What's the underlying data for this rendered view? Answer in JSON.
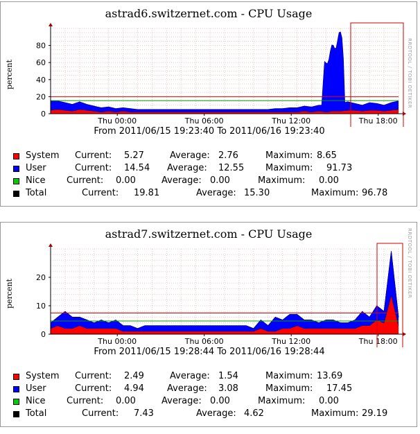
{
  "chart_data": [
    {
      "type": "area",
      "title": "astrad6.switzernet.com - CPU Usage",
      "ylabel": "percent",
      "watermark": "RRDTOOL / TOBI OETIKER",
      "x_range": [
        "2011/06/15 19:23:40",
        "2011/06/16 19:23:40"
      ],
      "x_ticks": [
        "Thu 00:00",
        "Thu 06:00",
        "Thu 12:00",
        "Thu 18:00"
      ],
      "y_ticks": [
        0,
        20,
        40,
        60,
        80
      ],
      "ylim": [
        0,
        100
      ],
      "hlines": [
        {
          "value": 19.81,
          "color": "#e00000"
        },
        {
          "value": 15.3,
          "color": "#00a000"
        }
      ],
      "range_text": "From 2011/06/15 19:23:40 To 2011/06/16 19:23:40",
      "x_hours": [
        0,
        0.5,
        1,
        1.5,
        2,
        2.5,
        3,
        3.5,
        4,
        4.5,
        5,
        5.5,
        6,
        6.5,
        7,
        7.5,
        8,
        8.5,
        9,
        9.5,
        10,
        10.5,
        11,
        11.5,
        12,
        12.5,
        13,
        13.5,
        14,
        14.5,
        15,
        15.5,
        16,
        16.5,
        17,
        17.5,
        18,
        18.5,
        19,
        19.5,
        20,
        20.5,
        21,
        21.5,
        22,
        22.5,
        23,
        23.5,
        24
      ],
      "series": [
        {
          "name": "System",
          "color": "#ff0000",
          "values": [
            4,
            5,
            4,
            3,
            5,
            4,
            3,
            2,
            3,
            2,
            3,
            2,
            2,
            2,
            2,
            2,
            2,
            2,
            2,
            2,
            2,
            2,
            2,
            2,
            2,
            2,
            2,
            2,
            2,
            2,
            2,
            2,
            2,
            2,
            2,
            3,
            2,
            3,
            2,
            3,
            3,
            4,
            4,
            3,
            4,
            4,
            3,
            4,
            5
          ]
        },
        {
          "name": "User",
          "color": "#0000ff",
          "values": [
            11,
            10,
            9,
            8,
            9,
            7,
            6,
            5,
            5,
            4,
            4,
            4,
            3,
            3,
            3,
            3,
            3,
            3,
            3,
            3,
            3,
            3,
            3,
            3,
            3,
            3,
            3,
            3,
            3,
            3,
            3,
            4,
            4,
            5,
            5,
            6,
            6,
            7,
            8,
            8,
            9,
            10,
            8,
            7,
            9,
            8,
            7,
            9,
            10
          ],
          "spike": {
            "from_hour": 18.7,
            "to_hour": 20.3,
            "peak": 96.78
          }
        }
      ],
      "legend": [
        {
          "name": "System",
          "color": "#ff0000",
          "current": "5.27",
          "average": "2.76",
          "maximum": "8.65"
        },
        {
          "name": "User",
          "color": "#0000ff",
          "current": "14.54",
          "average": "12.55",
          "maximum": "91.73"
        },
        {
          "name": "Nice",
          "color": "#00cc00",
          "current": "0.00",
          "average": "0.00",
          "maximum": "0.00"
        },
        {
          "name": "Total",
          "color": "#000000",
          "current": "19.81",
          "average": "15.30",
          "maximum": "96.78"
        }
      ],
      "labels": {
        "current": "Current:",
        "average": "Average:",
        "maximum": "Maximum:"
      }
    },
    {
      "type": "area",
      "title": "astrad7.switzernet.com - CPU Usage",
      "ylabel": "percent",
      "watermark": "RRDTOOL / TOBI OETIKER",
      "x_range": [
        "2011/06/15 19:28:44",
        "2011/06/16 19:28:44"
      ],
      "x_ticks": [
        "Thu 00:00",
        "Thu 06:00",
        "Thu 12:00",
        "Thu 18:00"
      ],
      "y_ticks": [
        0,
        10,
        20
      ],
      "ylim": [
        0,
        30
      ],
      "hlines": [
        {
          "value": 7.43,
          "color": "#e00000"
        },
        {
          "value": 4.62,
          "color": "#00a000"
        }
      ],
      "range_text": "From 2011/06/15 19:28:44 To 2011/06/16 19:28:44",
      "x_hours": [
        0,
        0.5,
        1,
        1.5,
        2,
        2.5,
        3,
        3.5,
        4,
        4.5,
        5,
        5.5,
        6,
        6.5,
        7,
        7.5,
        8,
        8.5,
        9,
        9.5,
        10,
        10.5,
        11,
        11.5,
        12,
        12.5,
        13,
        13.5,
        14,
        14.5,
        15,
        15.5,
        16,
        16.5,
        17,
        17.5,
        18,
        18.5,
        19,
        19.5,
        20,
        20.5,
        21,
        21.5,
        22,
        22.5,
        23,
        23.5,
        24
      ],
      "series": [
        {
          "name": "System",
          "color": "#ff0000",
          "values": [
            2,
            3,
            2,
            2,
            3,
            2,
            2,
            2,
            2,
            2,
            1,
            1,
            1,
            1,
            1,
            1,
            1,
            1,
            1,
            1,
            1,
            1,
            1,
            1,
            1,
            1,
            1,
            1,
            1,
            2,
            1,
            1,
            2,
            2,
            3,
            2,
            2,
            2,
            2,
            2,
            2,
            2,
            2,
            3,
            3,
            5,
            4,
            13.69,
            3
          ]
        },
        {
          "name": "User",
          "color": "#0000ff",
          "values": [
            2,
            3,
            6,
            4,
            3,
            3,
            2,
            3,
            2,
            3,
            2,
            2,
            1,
            2,
            2,
            2,
            2,
            2,
            2,
            2,
            2,
            2,
            2,
            2,
            2,
            2,
            2,
            2,
            1,
            3,
            2,
            5,
            3,
            5,
            4,
            3,
            3,
            2,
            3,
            3,
            2,
            2,
            3,
            5,
            3,
            5,
            4,
            15.5,
            3
          ]
        },
        {
          "name": "Nice",
          "color": "#00cc00",
          "values": [
            0,
            0,
            0,
            0,
            0,
            0,
            0,
            0,
            0,
            0,
            0,
            0,
            0,
            0,
            0,
            0,
            0,
            0,
            0,
            0,
            0,
            0,
            0,
            0,
            0,
            0,
            0,
            0,
            0,
            0,
            0,
            0,
            0,
            0,
            0,
            0,
            0,
            0,
            0,
            0,
            0,
            0,
            0,
            0,
            0,
            0,
            0,
            0,
            0
          ]
        }
      ],
      "legend": [
        {
          "name": "System",
          "color": "#ff0000",
          "current": "2.49",
          "average": "1.54",
          "maximum": "13.69"
        },
        {
          "name": "User",
          "color": "#0000ff",
          "current": "4.94",
          "average": "3.08",
          "maximum": "17.45"
        },
        {
          "name": "Nice",
          "color": "#00cc00",
          "current": "0.00",
          "average": "0.00",
          "maximum": "0.00"
        },
        {
          "name": "Total",
          "color": "#000000",
          "current": "7.43",
          "average": "4.62",
          "maximum": "29.19"
        }
      ],
      "labels": {
        "current": "Current:",
        "average": "Average:",
        "maximum": "Maximum:"
      }
    }
  ]
}
